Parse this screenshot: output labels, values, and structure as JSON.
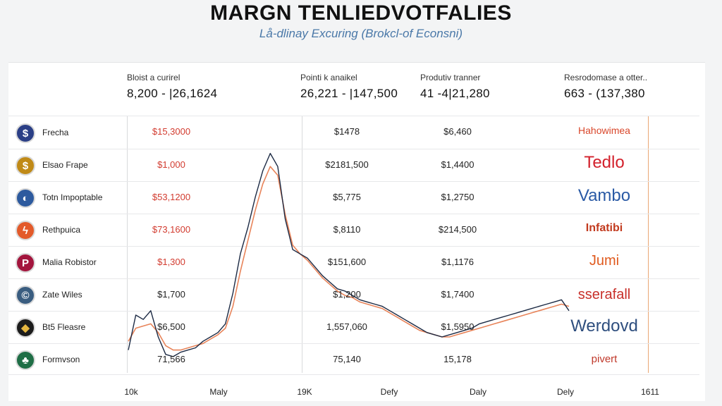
{
  "header": {
    "title": "MARGN TENLIEDVOTFALIES",
    "subtitle": "Lå-dlinay Excuring (Brokcl-of Econsni)"
  },
  "stats": [
    {
      "label": "Bloist a curirel",
      "value": "8,200 - |26,1624"
    },
    {
      "label": "Pointi k anaikel",
      "value": "26,221 - |147,500"
    },
    {
      "label": "Produtiv tranner",
      "value": "41  -4|21,280"
    },
    {
      "label": "Resrodomase a otter..",
      "value": "663 - (137,380"
    }
  ],
  "rows": [
    {
      "name": "Frecha",
      "icon": "dollar-coin-icon",
      "glyph": "$",
      "color": "#2b3f86",
      "c1": "$15,3000",
      "c2": "$1478",
      "c3": "$6,460"
    },
    {
      "name": "Elsao Frape",
      "icon": "gold-coin-icon",
      "glyph": "$",
      "color": "#c08a17",
      "c1": "$1,000",
      "c2": "$2181,500",
      "c3": "$1,4400"
    },
    {
      "name": "Totn Impoptable",
      "icon": "drop-coin-icon",
      "glyph": "◐",
      "color": "#2d5a9e",
      "c1": "$53,1200",
      "c2": "$5,775",
      "c3": "$1,2750"
    },
    {
      "name": "Rethpuica",
      "icon": "lightning-coin-icon",
      "glyph": "ϟ",
      "color": "#e35a2a",
      "c1": "$73,1600",
      "c2": "$,8110",
      "c3": "$214,500"
    },
    {
      "name": "Malia Robistor",
      "icon": "p-coin-icon",
      "glyph": "P",
      "color": "#a3153d",
      "c1": "$1,300",
      "c2": "$151,600",
      "c3": "$1,1176"
    },
    {
      "name": "Zate Wiles",
      "icon": "c-coin-icon",
      "glyph": "©",
      "color": "#3a5d80",
      "c1": "$1,700",
      "c2": "$1,200",
      "c3": "$1,7400"
    },
    {
      "name": "Bt5 Fleasre",
      "icon": "diamond-coin-icon",
      "glyph": "◆",
      "color": "#1c1c1c",
      "c1": "$6,500",
      "c2": "1,557,060",
      "c3": "$1,5950"
    },
    {
      "name": "Formvson",
      "icon": "leaf-coin-icon",
      "glyph": "♣",
      "color": "#1f6e46",
      "c1": "71,566",
      "c2": "75,140",
      "c3": "15,178"
    }
  ],
  "brands": [
    {
      "text": "Hahowimea",
      "color": "#d9472b"
    },
    {
      "text": "Tedlo",
      "color": "#d3212c"
    },
    {
      "text": "Vambo",
      "color": "#2a5aa5"
    },
    {
      "text": "Infatibi",
      "color": "#c23a1e"
    },
    {
      "text": "Jumi",
      "color": "#e05a1e"
    },
    {
      "text": "sserafall",
      "color": "#c8302a"
    },
    {
      "text": "Werdovd",
      "color": "#2e4e7e"
    },
    {
      "text": "pivert",
      "color": "#c0392b"
    }
  ],
  "xticks": [
    "10k",
    "Maly",
    "19K",
    "Defy",
    "Daly",
    "Dely",
    "1611"
  ],
  "chart_data": {
    "type": "line",
    "title": "",
    "xlabel": "",
    "ylabel": "",
    "x": [
      0,
      1,
      2,
      3,
      4,
      5,
      6,
      7,
      8,
      9,
      10,
      11,
      12,
      13,
      14,
      15,
      16,
      17,
      18,
      19,
      20,
      21,
      22,
      23,
      24,
      25,
      26,
      27,
      28,
      29,
      30,
      31,
      32,
      33,
      34,
      35,
      36,
      37,
      38,
      39,
      40,
      41,
      42,
      43,
      44,
      45,
      46,
      47,
      48,
      49,
      50,
      51,
      52,
      53,
      54,
      55,
      56,
      57,
      58,
      59
    ],
    "ylim": [
      0,
      100
    ],
    "series": [
      {
        "name": "",
        "color": "#1c2a44",
        "values": [
          4,
          20,
          18,
          22,
          10,
          2,
          1,
          3,
          4,
          5,
          8,
          10,
          12,
          16,
          30,
          48,
          60,
          74,
          86,
          94,
          88,
          64,
          50,
          48,
          46,
          42,
          38,
          35,
          32,
          31,
          29,
          27,
          26,
          25,
          24,
          22,
          20,
          18,
          16,
          14,
          12,
          11,
          10,
          11,
          12,
          13,
          14,
          16,
          17,
          18,
          19,
          20,
          21,
          22,
          23,
          24,
          25,
          26,
          27,
          22
        ]
      },
      {
        "name": "",
        "color": "#e8845a",
        "values": [
          8,
          14,
          15,
          16,
          12,
          6,
          4,
          4,
          5,
          6,
          7,
          9,
          11,
          14,
          24,
          40,
          54,
          68,
          80,
          88,
          84,
          66,
          52,
          48,
          45,
          41,
          37,
          34,
          31,
          29,
          28,
          26,
          25,
          24,
          23,
          21,
          19,
          17,
          15,
          13,
          12,
          11,
          10,
          10,
          11,
          12,
          13,
          14,
          15,
          16,
          17,
          18,
          19,
          20,
          21,
          22,
          23,
          24,
          25,
          24
        ]
      }
    ]
  }
}
